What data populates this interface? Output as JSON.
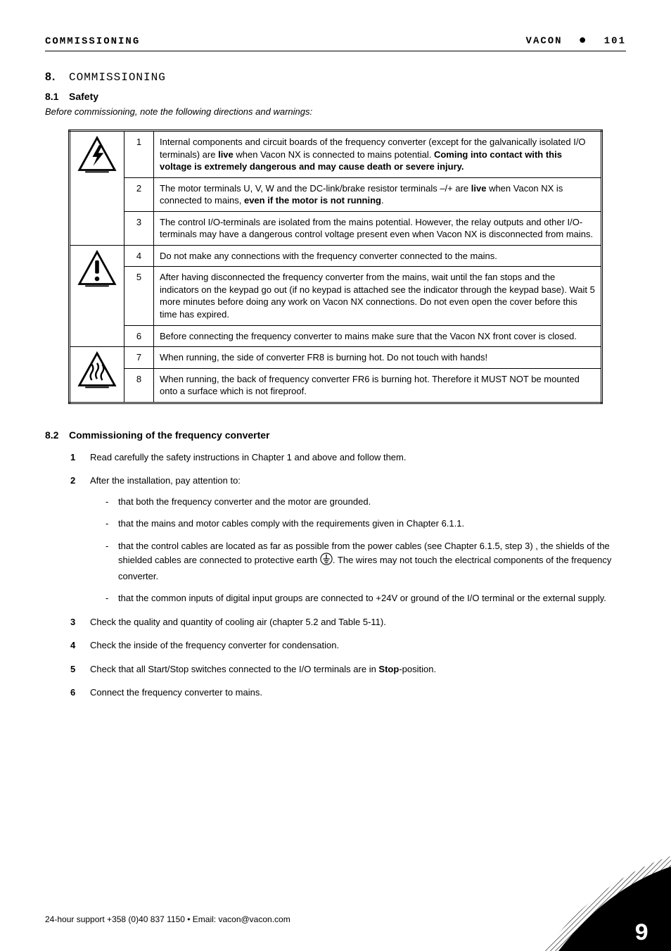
{
  "header": {
    "left": "COMMISSIONING",
    "right_prefix": "VACON",
    "right_page": "101"
  },
  "section8": {
    "num": "8.",
    "title": "COMMISSIONING"
  },
  "section81": {
    "num": "8.1",
    "title": "Safety",
    "intro": "Before commissioning, note the following directions and warnings:"
  },
  "safety_rows": [
    {
      "n": "1",
      "text": "Internal components and circuit boards of the frequency converter (except for the galvanically isolated I/O terminals) are <b>live</b> when Vacon NX is connected to mains potential. <b>Coming into contact with this voltage is extremely dangerous and may cause death or severe injury.</b>"
    },
    {
      "n": "2",
      "text": "The motor terminals U, V, W and the DC-link/brake resistor terminals –/+ are <b>live</b> when Vacon NX is connected to mains, <b>even if the motor is not running</b>."
    },
    {
      "n": "3",
      "text": "The control I/O-terminals are isolated from the mains potential. However, the relay outputs and other I/O-terminals may have a dangerous control voltage present even when Vacon NX is disconnected from mains."
    },
    {
      "n": "4",
      "text": "Do not make any connections with the frequency converter connected to the mains."
    },
    {
      "n": "5",
      "text": "After having disconnected the frequency converter from the mains, wait until the fan stops and the indicators on the keypad go out (if no keypad is attached see the indicator through the keypad base). Wait 5 more minutes before doing any work on Vacon NX connections. Do not even open the cover before this time has expired."
    },
    {
      "n": "6",
      "text": "Before connecting the frequency converter to mains make sure that the Vacon NX front cover is closed."
    },
    {
      "n": "7",
      "text": "When running, the side of converter FR8 is burning hot. Do not touch with hands!"
    },
    {
      "n": "8",
      "text": "When running, the back of frequency converter FR6 is burning hot. Therefore it MUST NOT be mounted onto a surface which is not fireproof."
    }
  ],
  "section82": {
    "num": "8.2",
    "title": "Commissioning of the frequency converter"
  },
  "steps": [
    {
      "n": "1",
      "text": "Read carefully the safety instructions in Chapter 1 and above and follow them."
    },
    {
      "n": "2",
      "text": "After the installation, pay attention to:"
    },
    {
      "n": "3",
      "text": "Check the quality and quantity of cooling air (chapter 5.2 and Table 5-11)."
    },
    {
      "n": "4",
      "text": "Check the inside of the frequency converter for condensation."
    },
    {
      "n": "5",
      "text": "Check that all Start/Stop switches connected to the I/O terminals are in <b>Stop</b>-position."
    },
    {
      "n": "6",
      "text": "Connect the frequency converter to mains."
    }
  ],
  "sub_bullets": [
    "that both the frequency converter and the motor are grounded.",
    "that the mains and motor cables comply with the requirements given in Chapter 6.1.1.",
    "that the control cables are located as far as possible from the power cables (see Chapter 6.1.5, step 3) , the shields of the shielded cables are connected to protective earth {EARTH}. The wires may not touch the electrical components of the frequency converter.",
    "that the common inputs of digital input groups are connected to +24V or ground of the I/O terminal or the external supply."
  ],
  "footer": {
    "text": "24-hour support +358 (0)40 837 1150 • Email: vacon@vacon.com",
    "corner_num": "9"
  },
  "icons": {
    "bolt": "<svg width='56' height='56' viewBox='0 0 60 60'><polygon points='30,3 57,52 3,52' fill='none' stroke='#000' stroke-width='3'/><polygon points='33,14 23,32 30,32 24,46 40,26 32,26 38,14' fill='#000'/><line x1='12' y1='55' x2='48' y2='55' stroke='#000' stroke-width='2'/></svg>",
    "excl": "<svg width='56' height='56' viewBox='0 0 60 60'><polygon points='30,3 57,52 3,52' fill='none' stroke='#000' stroke-width='3'/><rect x='27' y='16' width='6' height='20' rx='2' fill='#000'/><circle cx='30' cy='44' r='3.5' fill='#000'/><line x1='12' y1='55' x2='48' y2='55' stroke='#000' stroke-width='2'/></svg>",
    "heat": "<svg width='56' height='56' viewBox='0 0 60 60'><polygon points='30,3 57,52 3,52' fill='none' stroke='#000' stroke-width='3'/><path d='M22 20 q4 6 0 12 q-4 6 0 12' fill='none' stroke='#000' stroke-width='2.5'/><path d='M30 18 q4 6 0 12 q-4 6 0 12' fill='none' stroke='#000' stroke-width='2.5'/><path d='M38 20 q4 6 0 12 q-4 6 0 12' fill='none' stroke='#000' stroke-width='2.5'/><line x1='12' y1='55' x2='48' y2='55' stroke='#000' stroke-width='2'/></svg>",
    "earth_inline": "<svg width='18' height='18' viewBox='0 0 20 20'><circle cx='10' cy='10' r='9' fill='none' stroke='#000' stroke-width='1.2'/><line x1='10' y1='3' x2='10' y2='10' stroke='#000' stroke-width='1.4'/><line x1='5' y1='10' x2='15' y2='10' stroke='#000' stroke-width='1.4'/><line x1='6.5' y1='13' x2='13.5' y2='13' stroke='#000' stroke-width='1.4'/><line x1='8' y1='16' x2='12' y2='16' stroke='#000' stroke-width='1.4'/></svg>"
  }
}
